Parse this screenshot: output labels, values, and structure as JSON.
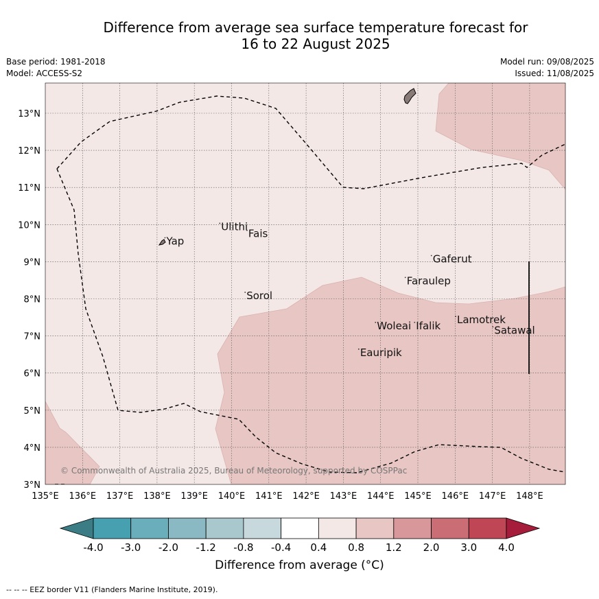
{
  "title": {
    "line1": "Difference from average sea surface temperature forecast for",
    "line2": "16 to 22 August 2025"
  },
  "meta": {
    "base_period": "Base period: 1981-2018",
    "model": "Model: ACCESS-S2",
    "model_run": "Model run: 09/08/2025",
    "issued": "Issued: 11/08/2025"
  },
  "map": {
    "lon_range": [
      135,
      149
    ],
    "lat_range": [
      3,
      13.8
    ],
    "lon_ticks": [
      "135°E",
      "136°E",
      "137°E",
      "138°E",
      "139°E",
      "140°E",
      "141°E",
      "142°E",
      "143°E",
      "144°E",
      "145°E",
      "146°E",
      "147°E",
      "148°E"
    ],
    "lat_ticks": [
      "3°N",
      "4°N",
      "5°N",
      "6°N",
      "7°N",
      "8°N",
      "9°N",
      "10°N",
      "11°N",
      "12°N",
      "13°N"
    ],
    "background_anomaly_band": "0.4 to 0.8",
    "warm_anomaly_band": "0.8 to 1.2",
    "colors": {
      "light_band": "#f4e8e7",
      "warm_band": "#e7c6c3",
      "land": "#877a77"
    },
    "places": [
      {
        "name": "Ulithi",
        "lon": 139.72,
        "lat": 9.85
      },
      {
        "name": "Fais",
        "lon": 140.45,
        "lat": 9.66
      },
      {
        "name": "Yap",
        "lon": 138.25,
        "lat": 9.46
      },
      {
        "name": "Gaferut",
        "lon": 145.4,
        "lat": 8.98
      },
      {
        "name": "Faraulep",
        "lon": 144.7,
        "lat": 8.39
      },
      {
        "name": "Sorol",
        "lon": 140.4,
        "lat": 7.99
      },
      {
        "name": "Woleai",
        "lon": 143.9,
        "lat": 7.18
      },
      {
        "name": "Ifalik",
        "lon": 144.95,
        "lat": 7.18
      },
      {
        "name": "Lamotrek",
        "lon": 146.05,
        "lat": 7.34
      },
      {
        "name": "Satawal",
        "lon": 147.05,
        "lat": 7.06
      },
      {
        "name": "Eauripik",
        "lon": 143.45,
        "lat": 6.46
      }
    ],
    "copyright": "© Commonwealth of Australia 2025, Bureau of Meteorology, supported by COSPPac"
  },
  "colorbar": {
    "tick_labels": [
      "-4.0",
      "-3.0",
      "-2.0",
      "-1.2",
      "-0.8",
      "-0.4",
      "0.4",
      "0.8",
      "1.2",
      "2.0",
      "3.0",
      "4.0"
    ],
    "colors": [
      "#46a0b0",
      "#6aadbb",
      "#8ab8c3",
      "#a9c8ce",
      "#c7d9dc",
      "#ffffff",
      "#f4e8e7",
      "#e7c6c3",
      "#d8979a",
      "#cb6d74",
      "#bf4655"
    ],
    "under_color": "#3b7c85",
    "over_color": "#a61d3b",
    "label": "Difference from average (°C)"
  },
  "footer": "-- -- -- EEZ border V11 (Flanders Marine Institute, 2019)."
}
